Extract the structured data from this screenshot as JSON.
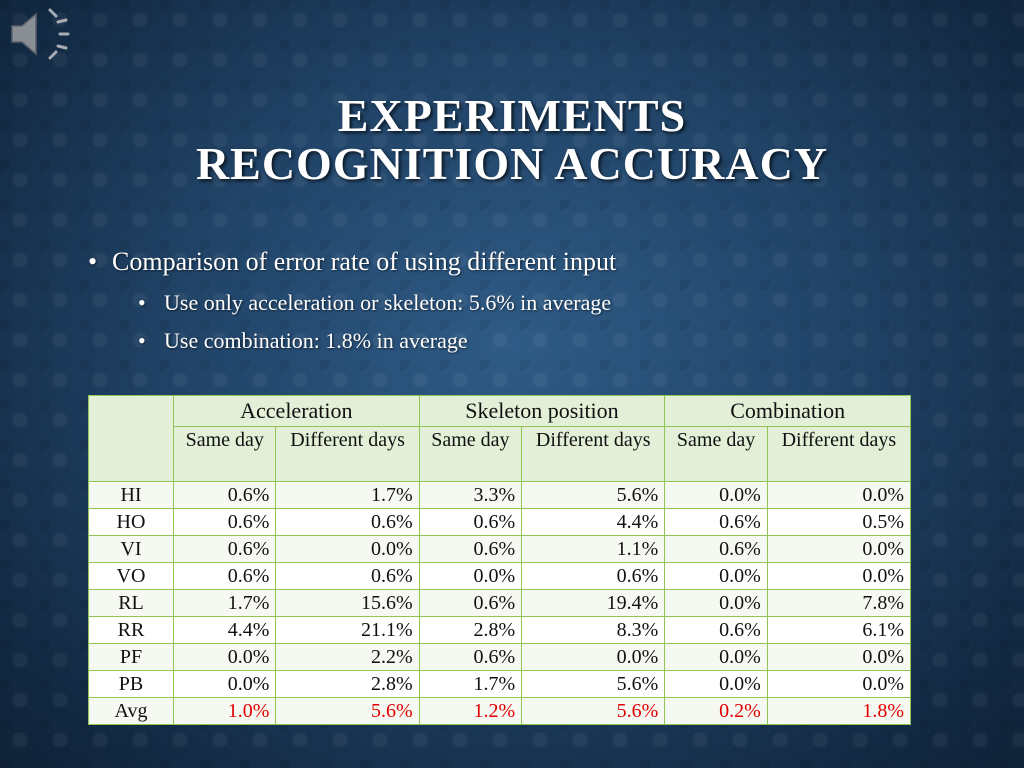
{
  "slide": {
    "title_line1": "EXPERIMENTS",
    "title_line2": "RECOGNITION ACCURACY"
  },
  "bullets": {
    "main": "Comparison of error rate of using different input",
    "sub1": "Use only acceleration or skeleton: 5.6% in average",
    "sub2": "Use combination: 1.8% in average"
  },
  "icons": {
    "audio": "speaker-icon",
    "bullet": "•"
  },
  "colors": {
    "accent_border": "#8fc552",
    "avg_highlight": "#e00000",
    "header_fill": "#e3efd7"
  },
  "table": {
    "groups": [
      "Acceleration",
      "Skeleton position",
      "Combination"
    ],
    "subheaders": [
      "Same day",
      "Different days",
      "Same day",
      "Different days",
      "Same day",
      "Different days"
    ],
    "rows": [
      {
        "label": "HI",
        "values": [
          "0.6%",
          "1.7%",
          "3.3%",
          "5.6%",
          "0.0%",
          "0.0%"
        ]
      },
      {
        "label": "HO",
        "values": [
          "0.6%",
          "0.6%",
          "0.6%",
          "4.4%",
          "0.6%",
          "0.5%"
        ]
      },
      {
        "label": "VI",
        "values": [
          "0.6%",
          "0.0%",
          "0.6%",
          "1.1%",
          "0.6%",
          "0.0%"
        ]
      },
      {
        "label": "VO",
        "values": [
          "0.6%",
          "0.6%",
          "0.0%",
          "0.6%",
          "0.0%",
          "0.0%"
        ]
      },
      {
        "label": "RL",
        "values": [
          "1.7%",
          "15.6%",
          "0.6%",
          "19.4%",
          "0.0%",
          "7.8%"
        ]
      },
      {
        "label": "RR",
        "values": [
          "4.4%",
          "21.1%",
          "2.8%",
          "8.3%",
          "0.6%",
          "6.1%"
        ]
      },
      {
        "label": "PF",
        "values": [
          "0.0%",
          "2.2%",
          "0.6%",
          "0.0%",
          "0.0%",
          "0.0%"
        ]
      },
      {
        "label": "PB",
        "values": [
          "0.0%",
          "2.8%",
          "1.7%",
          "5.6%",
          "0.0%",
          "0.0%"
        ]
      },
      {
        "label": "Avg",
        "values": [
          "1.0%",
          "5.6%",
          "1.2%",
          "5.6%",
          "0.2%",
          "1.8%"
        ]
      }
    ]
  }
}
